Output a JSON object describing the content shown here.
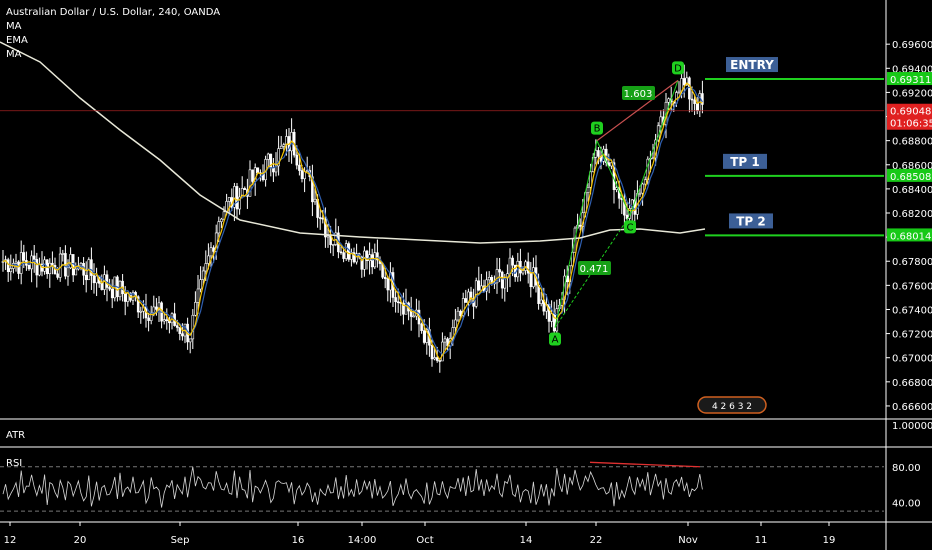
{
  "header": {
    "title": "Australian Dollar / U.S. Dollar, 240, OANDA",
    "indicators": [
      "MA",
      "EMA",
      "MA"
    ]
  },
  "panes": {
    "atr_label": "ATR",
    "rsi_label": "RSI"
  },
  "colors": {
    "background": "#000000",
    "candles": "#ffffff",
    "ma_long": "#e8e8d8",
    "ema": "#f5c400",
    "ma_short": "#2f5fb0",
    "green": "#1fd01f",
    "red": "#e03030",
    "label_box": "#3c5f96",
    "price_tag_green": "#17c917",
    "price_tag_red": "#e02020"
  },
  "chart_data": {
    "type": "candlestick",
    "symbol": "AUDUSD",
    "timeframe": "240",
    "y_axis": {
      "range": [
        0.665,
        0.699
      ],
      "ticks": [
        "0.69600",
        "0.69400",
        "0.69200",
        "0.69000",
        "0.68800",
        "0.68600",
        "0.68400",
        "0.68200",
        "0.68000",
        "0.67800",
        "0.67600",
        "0.67400",
        "0.67200",
        "0.67000",
        "0.66800",
        "0.66600"
      ]
    },
    "x_axis": {
      "ticks": [
        "12",
        "20",
        "Sep",
        "16",
        "14:00",
        "Oct",
        "14",
        "22",
        "Nov",
        "11",
        "19"
      ]
    },
    "price_path": [
      {
        "t": "12",
        "price": 0.678
      },
      {
        "t": "20",
        "price": 0.6775
      },
      {
        "t": "Sep",
        "price": 0.672
      },
      {
        "t": "Sep+",
        "price": 0.682
      },
      {
        "t": "16",
        "price": 0.688
      },
      {
        "t": "16+",
        "price": 0.68
      },
      {
        "t": "14:00",
        "price": 0.6775
      },
      {
        "t": "Oct",
        "price": 0.672
      },
      {
        "t": "Oct+",
        "price": 0.669
      },
      {
        "t": "Oct++",
        "price": 0.675
      },
      {
        "t": "14",
        "price": 0.678
      },
      {
        "t": "A",
        "price": 0.6725
      },
      {
        "t": "B",
        "price": 0.688
      },
      {
        "t": "C",
        "price": 0.6818
      },
      {
        "t": "D",
        "price": 0.693
      },
      {
        "t": "last",
        "price": 0.6905
      }
    ],
    "harmonic_points": [
      {
        "label": "A",
        "price": 0.6725
      },
      {
        "label": "B",
        "price": 0.688
      },
      {
        "label": "C",
        "price": 0.6818
      },
      {
        "label": "D",
        "price": 0.693
      }
    ],
    "ratios": [
      {
        "label": "1.603"
      },
      {
        "label": "0.471"
      }
    ],
    "levels": [
      {
        "name": "ENTRY",
        "price": 0.69311,
        "tag": "0.69311"
      },
      {
        "name": "TP 1",
        "price": 0.68508,
        "tag": "0.68508"
      },
      {
        "name": "TP 2",
        "price": 0.68014,
        "tag": "0.68014"
      }
    ],
    "current_price": {
      "value": 0.69048,
      "tag": "0.69048",
      "countdown": "01:06:35"
    },
    "atr": {
      "axis_label": "1.00000"
    },
    "rsi": {
      "range": [
        20,
        100
      ],
      "ticks": [
        "80.00",
        "40.00"
      ],
      "bands": [
        80,
        30
      ]
    },
    "badge_text": "4 2 6 3 2"
  }
}
